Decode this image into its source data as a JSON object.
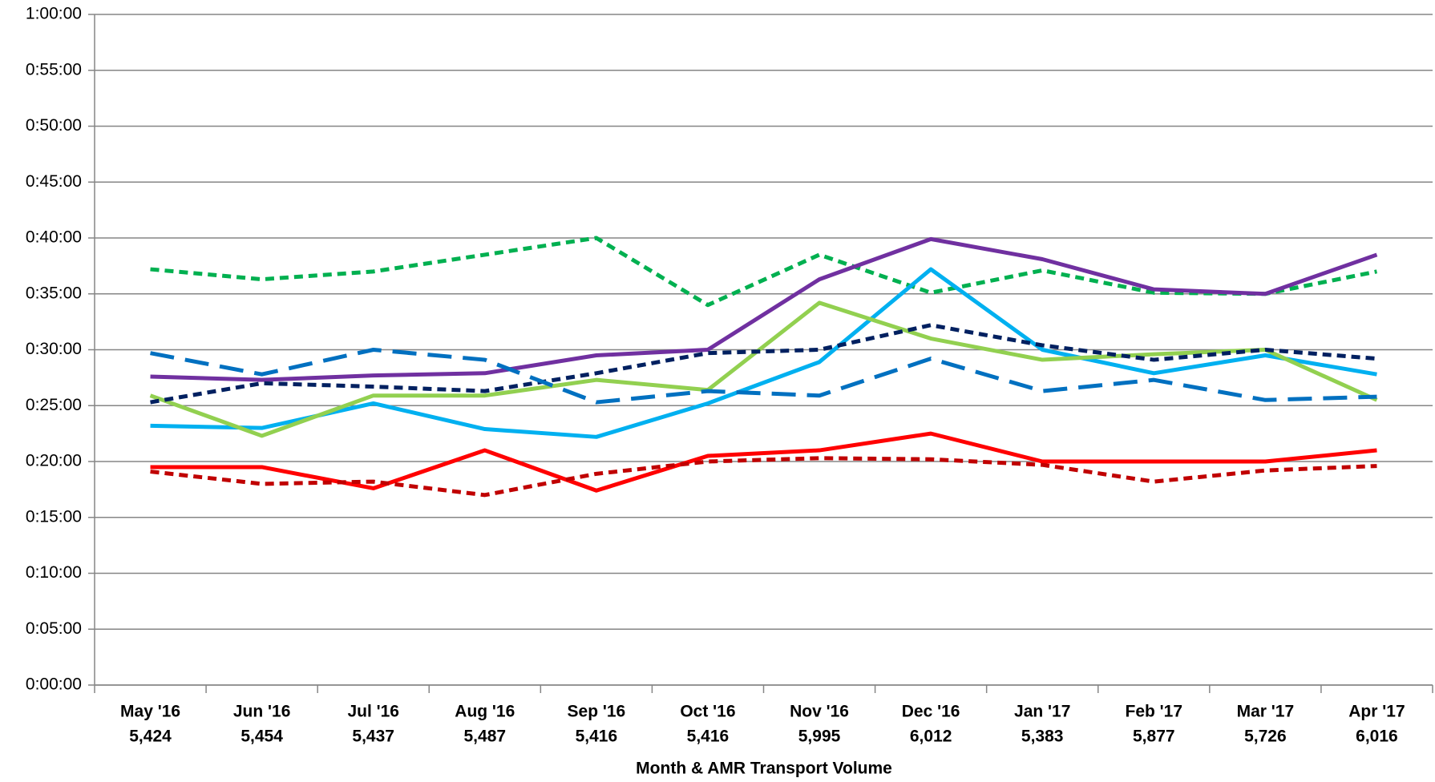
{
  "chart_data": {
    "type": "line",
    "x_label": "Month & AMR Transport Volume",
    "categories": [
      "May '16",
      "Jun '16",
      "Jul '16",
      "Aug '16",
      "Sep '16",
      "Oct '16",
      "Nov '16",
      "Dec '16",
      "Jan '17",
      "Feb '17",
      "Mar '17",
      "Apr '17"
    ],
    "category_volumes": [
      "5,424",
      "5,454",
      "5,437",
      "5,487",
      "5,416",
      "5,416",
      "5,995",
      "6,012",
      "5,383",
      "5,877",
      "5,726",
      "6,016"
    ],
    "ylim": [
      0,
      60
    ],
    "yticks": [
      {
        "value": 0,
        "label": "0:00:00"
      },
      {
        "value": 5,
        "label": "0:05:00"
      },
      {
        "value": 10,
        "label": "0:10:00"
      },
      {
        "value": 15,
        "label": "0:15:00"
      },
      {
        "value": 20,
        "label": "0:20:00"
      },
      {
        "value": 25,
        "label": "0:25:00"
      },
      {
        "value": 30,
        "label": "0:30:00"
      },
      {
        "value": 35,
        "label": "0:35:00"
      },
      {
        "value": 40,
        "label": "0:40:00"
      },
      {
        "value": 45,
        "label": "0:45:00"
      },
      {
        "value": 50,
        "label": "0:50:00"
      },
      {
        "value": 55,
        "label": "0:55:00"
      },
      {
        "value": 60,
        "label": "1:00:00"
      }
    ],
    "grid": true,
    "series": [
      {
        "color": "#00b050",
        "dash": "short",
        "values": [
          37.2,
          36.3,
          37.0,
          38.5,
          40.0,
          34.0,
          38.5,
          35.1,
          37.1,
          35.1,
          35.0,
          37.0
        ]
      },
      {
        "color": "#7030a0",
        "dash": "solid",
        "values": [
          27.6,
          27.3,
          27.7,
          27.9,
          29.5,
          30.0,
          36.3,
          39.9,
          38.1,
          35.4,
          35.0,
          38.5
        ]
      },
      {
        "color": "#00b0f0",
        "dash": "solid",
        "values": [
          23.2,
          23.0,
          25.2,
          22.9,
          22.2,
          25.2,
          28.9,
          37.2,
          30.0,
          27.9,
          29.5,
          27.8
        ]
      },
      {
        "color": "#92d050",
        "dash": "solid",
        "values": [
          25.9,
          22.3,
          25.9,
          25.9,
          27.3,
          26.4,
          34.2,
          31.0,
          29.1,
          29.6,
          30.0,
          25.5
        ]
      },
      {
        "color": "#002060",
        "dash": "short",
        "values": [
          25.3,
          27.0,
          26.7,
          26.3,
          27.9,
          29.7,
          30.0,
          32.2,
          30.4,
          29.1,
          30.0,
          29.2
        ]
      },
      {
        "color": "#0070c0",
        "dash": "long",
        "values": [
          29.7,
          27.8,
          30.0,
          29.1,
          25.3,
          26.3,
          25.9,
          29.2,
          26.3,
          27.3,
          25.5,
          25.8
        ]
      },
      {
        "color": "#ff0000",
        "dash": "solid",
        "values": [
          19.5,
          19.5,
          17.6,
          21.0,
          17.4,
          20.5,
          21.0,
          22.5,
          20.0,
          20.0,
          20.0,
          21.0
        ]
      },
      {
        "color": "#c00000",
        "dash": "short",
        "values": [
          19.1,
          18.0,
          18.2,
          17.0,
          18.9,
          20.0,
          20.3,
          20.2,
          19.7,
          18.2,
          19.2,
          19.6
        ]
      }
    ]
  }
}
